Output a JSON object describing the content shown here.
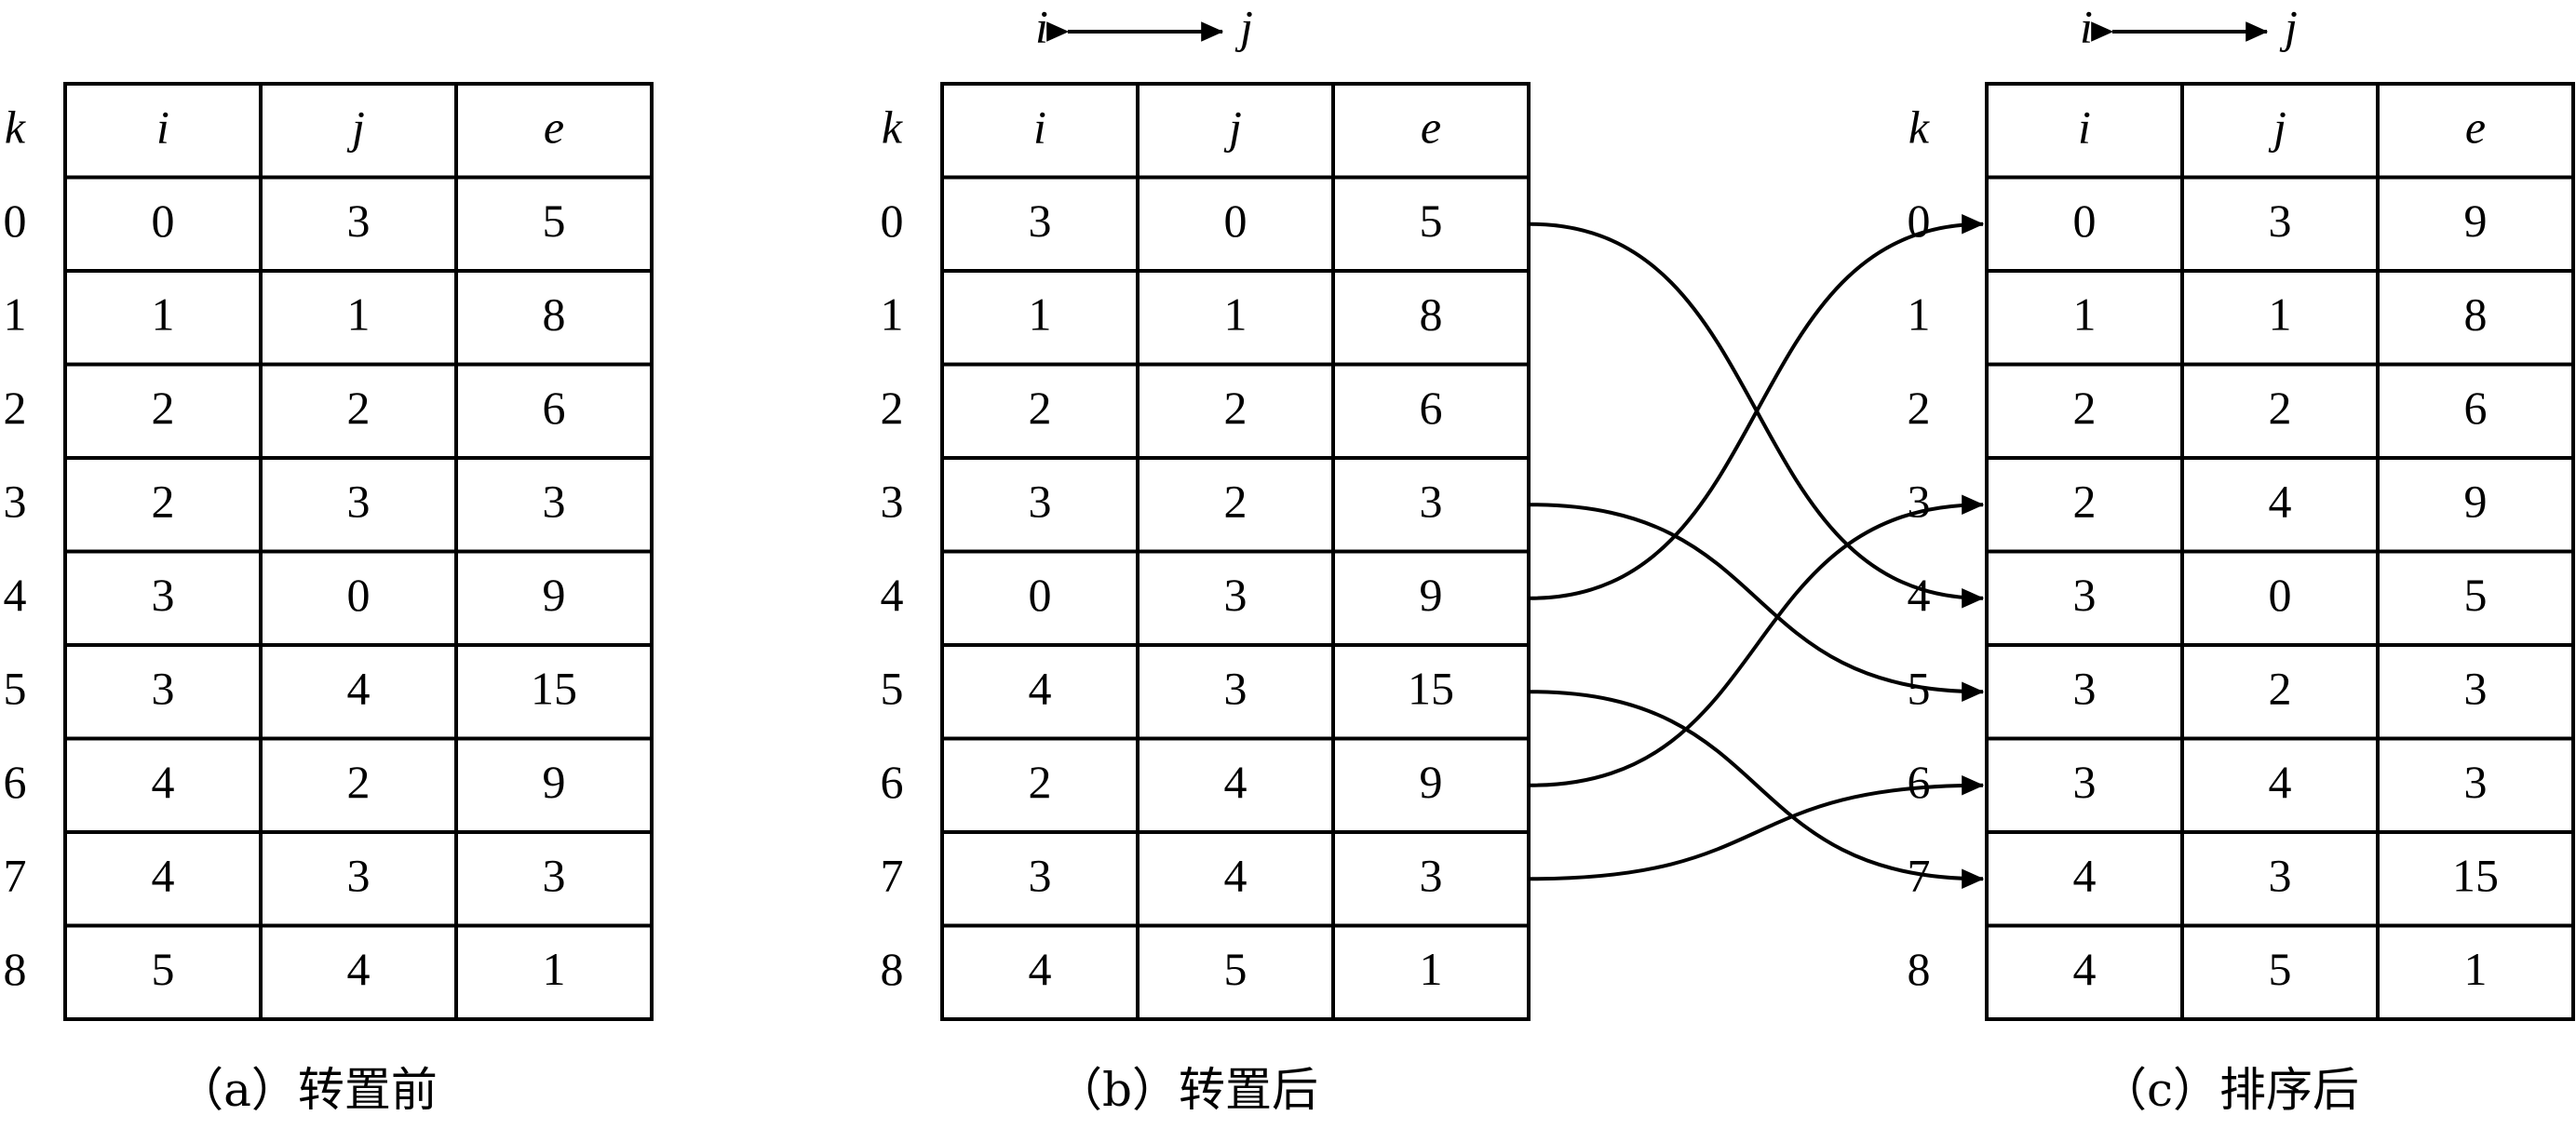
{
  "tables": [
    {
      "header": {
        "k": "k",
        "i": "i",
        "j": "j",
        "e": "e"
      },
      "k_labels": [
        "0",
        "1",
        "2",
        "3",
        "4",
        "5",
        "6",
        "7",
        "8"
      ],
      "rows": [
        [
          "0",
          "3",
          "5"
        ],
        [
          "1",
          "1",
          "8"
        ],
        [
          "2",
          "2",
          "6"
        ],
        [
          "2",
          "3",
          "3"
        ],
        [
          "3",
          "0",
          "9"
        ],
        [
          "3",
          "4",
          "15"
        ],
        [
          "4",
          "2",
          "9"
        ],
        [
          "4",
          "3",
          "3"
        ],
        [
          "5",
          "4",
          "1"
        ]
      ],
      "caption": "（a）转置前"
    },
    {
      "swap_label": {
        "left": "i",
        "right": "j"
      },
      "header": {
        "k": "k",
        "i": "i",
        "j": "j",
        "e": "e"
      },
      "k_labels": [
        "0",
        "1",
        "2",
        "3",
        "4",
        "5",
        "6",
        "7",
        "8"
      ],
      "rows": [
        [
          "3",
          "0",
          "5"
        ],
        [
          "1",
          "1",
          "8"
        ],
        [
          "2",
          "2",
          "6"
        ],
        [
          "3",
          "2",
          "3"
        ],
        [
          "0",
          "3",
          "9"
        ],
        [
          "4",
          "3",
          "15"
        ],
        [
          "2",
          "4",
          "9"
        ],
        [
          "3",
          "4",
          "3"
        ],
        [
          "4",
          "5",
          "1"
        ]
      ],
      "caption": "（b）转置后"
    },
    {
      "swap_label": {
        "left": "i",
        "right": "j"
      },
      "header": {
        "k": "k",
        "i": "i",
        "j": "j",
        "e": "e"
      },
      "k_labels": [
        "0",
        "1",
        "2",
        "3",
        "4",
        "5",
        "6",
        "7",
        "8"
      ],
      "rows": [
        [
          "0",
          "3",
          "9"
        ],
        [
          "1",
          "1",
          "8"
        ],
        [
          "2",
          "2",
          "6"
        ],
        [
          "2",
          "4",
          "9"
        ],
        [
          "3",
          "0",
          "5"
        ],
        [
          "3",
          "2",
          "3"
        ],
        [
          "3",
          "4",
          "3"
        ],
        [
          "4",
          "3",
          "15"
        ],
        [
          "4",
          "5",
          "1"
        ]
      ],
      "caption": "（c）排序后"
    }
  ],
  "mappings": [
    {
      "from_row": 0,
      "to_row": 4
    },
    {
      "from_row": 3,
      "to_row": 5
    },
    {
      "from_row": 4,
      "to_row": 0
    },
    {
      "from_row": 5,
      "to_row": 7
    },
    {
      "from_row": 6,
      "to_row": 3
    },
    {
      "from_row": 7,
      "to_row": 6
    }
  ]
}
